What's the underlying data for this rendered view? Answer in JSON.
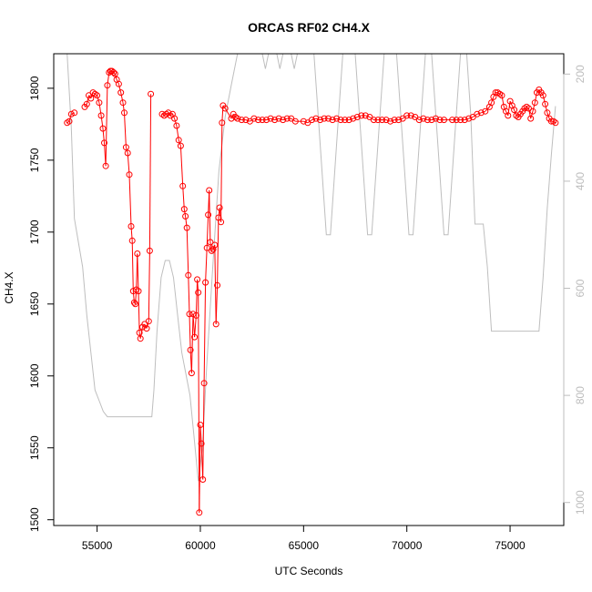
{
  "chart_data": {
    "type": "line",
    "title": "ORCAS RF02 CH4.X",
    "xlabel": "UTC Seconds",
    "ylabel": "CH4.X",
    "xlim": [
      52900,
      77600
    ],
    "ylim": [
      1496,
      1824
    ],
    "x_ticks": [
      55000,
      60000,
      65000,
      70000,
      75000
    ],
    "x_tick_labels": [
      "55000",
      "60000",
      "65000",
      "70000",
      "75000"
    ],
    "y_ticks": [
      1500,
      1550,
      1600,
      1650,
      1700,
      1750,
      1800
    ],
    "y_tick_labels": [
      "1500",
      "1550",
      "1600",
      "1650",
      "1700",
      "1750",
      "1800"
    ],
    "y2_lim": [
      1043,
      162
    ],
    "y2_ticks": [
      200,
      400,
      600,
      800,
      1000
    ],
    "y2_tick_labels": [
      "200",
      "400",
      "600",
      "800",
      "1000"
    ],
    "grid": false,
    "series": [
      {
        "role": "CH4",
        "color": "#ff0000",
        "marker": "open-circle",
        "points": [
          [
            53550,
            1776
          ],
          [
            53650,
            1777
          ],
          [
            53750,
            1782
          ],
          [
            53900,
            1783
          ],
          [
            54400,
            1787
          ],
          [
            54500,
            1789
          ],
          [
            54600,
            1795
          ],
          [
            54700,
            1793
          ],
          [
            54800,
            1797
          ],
          [
            54900,
            1796
          ],
          [
            55000,
            1795
          ],
          [
            55100,
            1790
          ],
          [
            55200,
            1781
          ],
          [
            55280,
            1772
          ],
          [
            55350,
            1762
          ],
          [
            55420,
            1746
          ],
          [
            55500,
            1802
          ],
          [
            55580,
            1811
          ],
          [
            55650,
            1812
          ],
          [
            55720,
            1812
          ],
          [
            55800,
            1811
          ],
          [
            55870,
            1810
          ],
          [
            55950,
            1806
          ],
          [
            56050,
            1803
          ],
          [
            56150,
            1797
          ],
          [
            56250,
            1790
          ],
          [
            56320,
            1783
          ],
          [
            56400,
            1759
          ],
          [
            56480,
            1755
          ],
          [
            56560,
            1740
          ],
          [
            56650,
            1704
          ],
          [
            56700,
            1694
          ],
          [
            56750,
            1659
          ],
          [
            56800,
            1651
          ],
          [
            56850,
            1650
          ],
          [
            56900,
            1660
          ],
          [
            56950,
            1685
          ],
          [
            57000,
            1659
          ],
          [
            57050,
            1630
          ],
          [
            57100,
            1626
          ],
          [
            57200,
            1634
          ],
          [
            57300,
            1636
          ],
          [
            57400,
            1633
          ],
          [
            57500,
            1638
          ],
          [
            57550,
            1687
          ],
          [
            57600,
            1796
          ],
          [
            58150,
            1782
          ],
          [
            58250,
            1781
          ],
          [
            58350,
            1782
          ],
          [
            58450,
            1783
          ],
          [
            58550,
            1781
          ],
          [
            58650,
            1782
          ],
          [
            58750,
            1779
          ],
          [
            58850,
            1774
          ],
          [
            58950,
            1764
          ],
          [
            59050,
            1760
          ],
          [
            59150,
            1732
          ],
          [
            59220,
            1716
          ],
          [
            59280,
            1711
          ],
          [
            59350,
            1703
          ],
          [
            59420,
            1670
          ],
          [
            59470,
            1643
          ],
          [
            59520,
            1618
          ],
          [
            59580,
            1602
          ],
          [
            59650,
            1643
          ],
          [
            59720,
            1627
          ],
          [
            59800,
            1642
          ],
          [
            59850,
            1667
          ],
          [
            59900,
            1658
          ],
          [
            59950,
            1505
          ],
          [
            60000,
            1566
          ],
          [
            60050,
            1553
          ],
          [
            60120,
            1528
          ],
          [
            60180,
            1595
          ],
          [
            60250,
            1665
          ],
          [
            60320,
            1689
          ],
          [
            60380,
            1712
          ],
          [
            60430,
            1729
          ],
          [
            60480,
            1693
          ],
          [
            60550,
            1687
          ],
          [
            60620,
            1688
          ],
          [
            60700,
            1691
          ],
          [
            60760,
            1636
          ],
          [
            60820,
            1663
          ],
          [
            60880,
            1710
          ],
          [
            60930,
            1717
          ],
          [
            61000,
            1707
          ],
          [
            61050,
            1776
          ],
          [
            61100,
            1788
          ],
          [
            61200,
            1786
          ],
          [
            61500,
            1779
          ],
          [
            61600,
            1782
          ],
          [
            61700,
            1780
          ],
          [
            61800,
            1779
          ],
          [
            62000,
            1778
          ],
          [
            62200,
            1778
          ],
          [
            62400,
            1777
          ],
          [
            62600,
            1779
          ],
          [
            62800,
            1778
          ],
          [
            63000,
            1778
          ],
          [
            63200,
            1778
          ],
          [
            63400,
            1779
          ],
          [
            63600,
            1778
          ],
          [
            63800,
            1779
          ],
          [
            64000,
            1778
          ],
          [
            64200,
            1779
          ],
          [
            64400,
            1779
          ],
          [
            64600,
            1777
          ],
          [
            65000,
            1777
          ],
          [
            65200,
            1776
          ],
          [
            65400,
            1778
          ],
          [
            65600,
            1779
          ],
          [
            65800,
            1778
          ],
          [
            66000,
            1779
          ],
          [
            66200,
            1779
          ],
          [
            66400,
            1778
          ],
          [
            66600,
            1779
          ],
          [
            66800,
            1778
          ],
          [
            67000,
            1778
          ],
          [
            67200,
            1778
          ],
          [
            67400,
            1779
          ],
          [
            67600,
            1780
          ],
          [
            67800,
            1781
          ],
          [
            68000,
            1781
          ],
          [
            68200,
            1780
          ],
          [
            68400,
            1778
          ],
          [
            68600,
            1778
          ],
          [
            68800,
            1778
          ],
          [
            69000,
            1778
          ],
          [
            69200,
            1777
          ],
          [
            69400,
            1778
          ],
          [
            69600,
            1778
          ],
          [
            69800,
            1779
          ],
          [
            70000,
            1781
          ],
          [
            70200,
            1781
          ],
          [
            70400,
            1780
          ],
          [
            70600,
            1778
          ],
          [
            70800,
            1779
          ],
          [
            71000,
            1778
          ],
          [
            71200,
            1778
          ],
          [
            71400,
            1779
          ],
          [
            71600,
            1778
          ],
          [
            71800,
            1778
          ],
          [
            72200,
            1778
          ],
          [
            72400,
            1778
          ],
          [
            72600,
            1778
          ],
          [
            72800,
            1778
          ],
          [
            73000,
            1779
          ],
          [
            73200,
            1780
          ],
          [
            73400,
            1782
          ],
          [
            73600,
            1783
          ],
          [
            73800,
            1784
          ],
          [
            74000,
            1787
          ],
          [
            74100,
            1790
          ],
          [
            74200,
            1794
          ],
          [
            74300,
            1797
          ],
          [
            74400,
            1797
          ],
          [
            74500,
            1796
          ],
          [
            74600,
            1795
          ],
          [
            74700,
            1787
          ],
          [
            74800,
            1784
          ],
          [
            74900,
            1781
          ],
          [
            75000,
            1791
          ],
          [
            75100,
            1788
          ],
          [
            75200,
            1785
          ],
          [
            75300,
            1781
          ],
          [
            75400,
            1780
          ],
          [
            75500,
            1782
          ],
          [
            75600,
            1784
          ],
          [
            75700,
            1786
          ],
          [
            75800,
            1787
          ],
          [
            75900,
            1786
          ],
          [
            76000,
            1779
          ],
          [
            76100,
            1784
          ],
          [
            76200,
            1790
          ],
          [
            76300,
            1797
          ],
          [
            76400,
            1799
          ],
          [
            76500,
            1797
          ],
          [
            76600,
            1795
          ],
          [
            76700,
            1789
          ],
          [
            76800,
            1783
          ],
          [
            76900,
            1779
          ],
          [
            77000,
            1777
          ],
          [
            77100,
            1777
          ],
          [
            77200,
            1776
          ]
        ]
      },
      {
        "role": "altitude",
        "color": "#bebebe",
        "axis": "right",
        "points": [
          [
            53550,
            162
          ],
          [
            53750,
            300
          ],
          [
            53900,
            470
          ],
          [
            54300,
            560
          ],
          [
            54500,
            650
          ],
          [
            54700,
            720
          ],
          [
            54900,
            790
          ],
          [
            55100,
            810
          ],
          [
            55300,
            830
          ],
          [
            55500,
            840
          ],
          [
            56000,
            840
          ],
          [
            57000,
            840
          ],
          [
            57650,
            840
          ],
          [
            57750,
            790
          ],
          [
            57900,
            680
          ],
          [
            58100,
            580
          ],
          [
            58300,
            548
          ],
          [
            58500,
            548
          ],
          [
            58700,
            580
          ],
          [
            58900,
            650
          ],
          [
            59100,
            720
          ],
          [
            59300,
            760
          ],
          [
            59500,
            800
          ],
          [
            59700,
            880
          ],
          [
            59900,
            960
          ],
          [
            60100,
            900
          ],
          [
            60300,
            750
          ],
          [
            60600,
            560
          ],
          [
            60900,
            380
          ],
          [
            61200,
            280
          ],
          [
            61500,
            220
          ],
          [
            61800,
            162
          ],
          [
            63000,
            162
          ],
          [
            63150,
            190
          ],
          [
            63300,
            162
          ],
          [
            63700,
            162
          ],
          [
            63850,
            190
          ],
          [
            64000,
            162
          ],
          [
            64400,
            162
          ],
          [
            64550,
            190
          ],
          [
            64700,
            162
          ],
          [
            65500,
            162
          ],
          [
            65800,
            330
          ],
          [
            66100,
            500
          ],
          [
            66300,
            500
          ],
          [
            66600,
            330
          ],
          [
            66900,
            162
          ],
          [
            67500,
            162
          ],
          [
            67800,
            330
          ],
          [
            68100,
            500
          ],
          [
            68300,
            500
          ],
          [
            68600,
            330
          ],
          [
            68900,
            162
          ],
          [
            69500,
            162
          ],
          [
            69800,
            330
          ],
          [
            70100,
            500
          ],
          [
            70300,
            500
          ],
          [
            70600,
            330
          ],
          [
            70900,
            162
          ],
          [
            71200,
            162
          ],
          [
            71500,
            330
          ],
          [
            71800,
            500
          ],
          [
            72000,
            500
          ],
          [
            72300,
            330
          ],
          [
            72600,
            162
          ],
          [
            72900,
            162
          ],
          [
            73100,
            280
          ],
          [
            73300,
            480
          ],
          [
            73500,
            480
          ],
          [
            73700,
            480
          ],
          [
            73900,
            560
          ],
          [
            74100,
            680
          ],
          [
            74300,
            680
          ],
          [
            75000,
            680
          ],
          [
            76000,
            680
          ],
          [
            76400,
            680
          ],
          [
            76600,
            580
          ],
          [
            76800,
            450
          ],
          [
            77000,
            350
          ],
          [
            77200,
            260
          ]
        ]
      }
    ]
  }
}
